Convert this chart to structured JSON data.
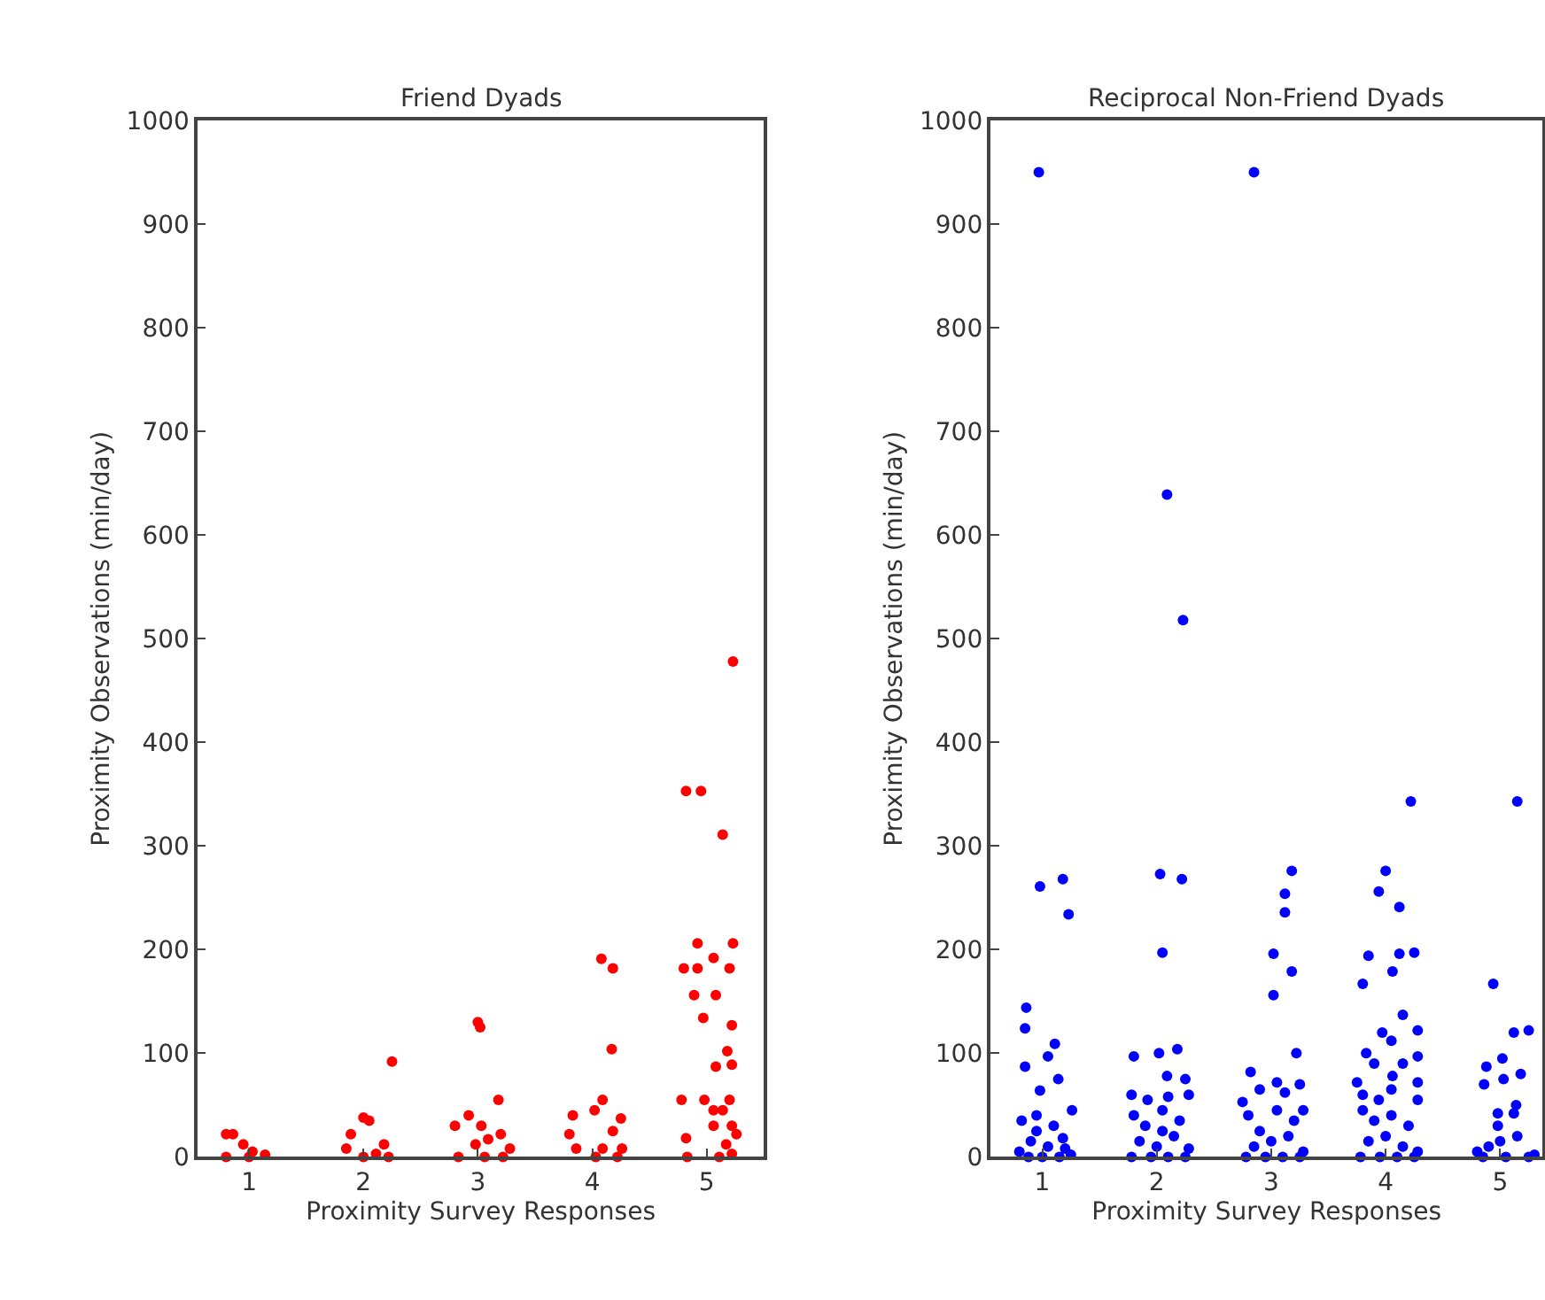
{
  "chart_data": [
    {
      "type": "scatter",
      "title": "Friend Dyads",
      "xlabel": "Proximity Survey Responses",
      "ylabel": "Proximity Observations (min/day)",
      "xlim": [
        0.55,
        5.5
      ],
      "ylim": [
        0,
        1000
      ],
      "xticks": [
        1,
        2,
        3,
        4,
        5
      ],
      "yticks": [
        0,
        100,
        200,
        300,
        400,
        500,
        600,
        700,
        800,
        900,
        1000
      ],
      "marker": "circle",
      "series": [
        {
          "color": "#ff0000",
          "x": [
            5.23,
            4.82,
            4.95,
            5.14,
            4.92,
            5.23,
            4.8,
            4.92,
            5.06,
            5.2,
            4.89,
            5.08,
            4.97,
            5.22,
            5.18,
            5.08,
            5.22,
            4.78,
            4.98,
            5.2,
            5.06,
            5.14,
            5.06,
            5.22,
            4.82,
            5.26,
            5.17,
            4.83,
            5.11,
            5.22,
            4.08,
            4.18,
            4.17,
            3.83,
            4.02,
            4.09,
            4.25,
            3.8,
            4.18,
            3.86,
            4.09,
            4.26,
            4.03,
            4.22,
            3.0,
            3.02,
            3.18,
            2.92,
            2.8,
            3.03,
            3.2,
            3.09,
            2.98,
            3.28,
            2.83,
            3.06,
            3.22,
            2.25,
            2.0,
            2.05,
            1.89,
            2.18,
            1.85,
            2.11,
            2.0,
            2.22,
            0.8,
            0.86,
            0.95,
            1.03,
            1.14,
            0.8,
            1.0
          ],
          "values": [
            478,
            353,
            353,
            311,
            206,
            206,
            182,
            182,
            192,
            182,
            156,
            156,
            134,
            127,
            102,
            87,
            89,
            55,
            55,
            55,
            45,
            45,
            30,
            30,
            18,
            22,
            12,
            0,
            0,
            3,
            191,
            182,
            104,
            40,
            45,
            55,
            37,
            22,
            25,
            8,
            8,
            8,
            0,
            0,
            130,
            125,
            55,
            40,
            30,
            30,
            22,
            17,
            12,
            8,
            0,
            0,
            0,
            92,
            38,
            35,
            22,
            12,
            8,
            3,
            0,
            0,
            22,
            22,
            12,
            5,
            2,
            0,
            0
          ]
        }
      ]
    },
    {
      "type": "scatter",
      "title": "Reciprocal Non-Friend Dyads",
      "xlabel": "Proximity Survey Responses",
      "ylabel": "Proximity Observations (min/day)",
      "xlim": [
        0.55,
        5.37
      ],
      "ylim": [
        0,
        1000
      ],
      "xticks": [
        1,
        2,
        3,
        4,
        5
      ],
      "yticks": [
        0,
        100,
        200,
        300,
        400,
        500,
        600,
        700,
        800,
        900,
        1000
      ],
      "marker": "circle",
      "series": [
        {
          "color": "#0000ff",
          "x": [
            0.97,
            2.85,
            2.09,
            2.23,
            4.22,
            5.15,
            0.98,
            1.18,
            1.23,
            2.03,
            2.22,
            2.05,
            3.18,
            3.12,
            3.12,
            3.02,
            3.18,
            3.02,
            4.0,
            3.94,
            4.12,
            3.85,
            4.12,
            4.25,
            4.06,
            3.8,
            4.15,
            4.94,
            0.86,
            0.85,
            1.11,
            1.05,
            0.85,
            0.98,
            1.14,
            1.26,
            1.8,
            2.02,
            2.18,
            2.09,
            2.25,
            1.78,
            2.28,
            2.82,
            3.22,
            2.75,
            3.05,
            3.25,
            3.28,
            3.97,
            4.28,
            4.05,
            4.28,
            3.83,
            3.75,
            4.06,
            4.28,
            3.94,
            4.28,
            5.12,
            5.25,
            5.02,
            4.88,
            5.18,
            4.86,
            5.03,
            5.14,
            4.98,
            4.98,
            5.12,
            0.82,
            0.95,
            1.1,
            0.9,
            1.05,
            1.2,
            0.8,
            1.0,
            1.15,
            0.88,
            1.25,
            0.95,
            1.18,
            1.8,
            1.9,
            2.05,
            2.2,
            1.85,
            2.0,
            2.15,
            2.28,
            1.78,
            1.95,
            2.1,
            2.25,
            2.05,
            1.92,
            2.1,
            2.8,
            2.9,
            3.05,
            3.2,
            2.85,
            3.0,
            3.15,
            3.28,
            2.78,
            2.95,
            3.1,
            3.25,
            2.9,
            3.12,
            3.8,
            3.9,
            4.05,
            4.2,
            3.85,
            4.0,
            4.15,
            4.28,
            3.78,
            3.95,
            4.1,
            4.25,
            3.9,
            4.15,
            3.8,
            4.05,
            4.8,
            4.9,
            5.0,
            5.15,
            5.25,
            4.85,
            5.05,
            5.3
          ],
          "values": [
            950,
            950,
            639,
            518,
            343,
            343,
            261,
            268,
            234,
            273,
            268,
            197,
            276,
            254,
            236,
            196,
            179,
            156,
            276,
            256,
            241,
            194,
            196,
            197,
            179,
            167,
            137,
            167,
            144,
            124,
            109,
            97,
            87,
            64,
            75,
            45,
            97,
            100,
            104,
            78,
            75,
            60,
            60,
            82,
            100,
            53,
            72,
            70,
            45,
            120,
            122,
            112,
            97,
            100,
            72,
            78,
            72,
            55,
            55,
            120,
            122,
            95,
            87,
            80,
            70,
            75,
            50,
            42,
            30,
            42,
            35,
            25,
            30,
            15,
            10,
            8,
            5,
            0,
            0,
            0,
            2,
            40,
            18,
            40,
            30,
            45,
            35,
            15,
            10,
            20,
            8,
            0,
            0,
            0,
            0,
            25,
            55,
            58,
            40,
            25,
            45,
            35,
            10,
            15,
            20,
            5,
            0,
            0,
            0,
            0,
            65,
            62,
            45,
            35,
            40,
            30,
            15,
            20,
            10,
            5,
            0,
            0,
            0,
            0,
            90,
            90,
            60,
            65,
            5,
            10,
            15,
            20,
            0,
            0,
            0,
            2
          ]
        }
      ]
    }
  ]
}
